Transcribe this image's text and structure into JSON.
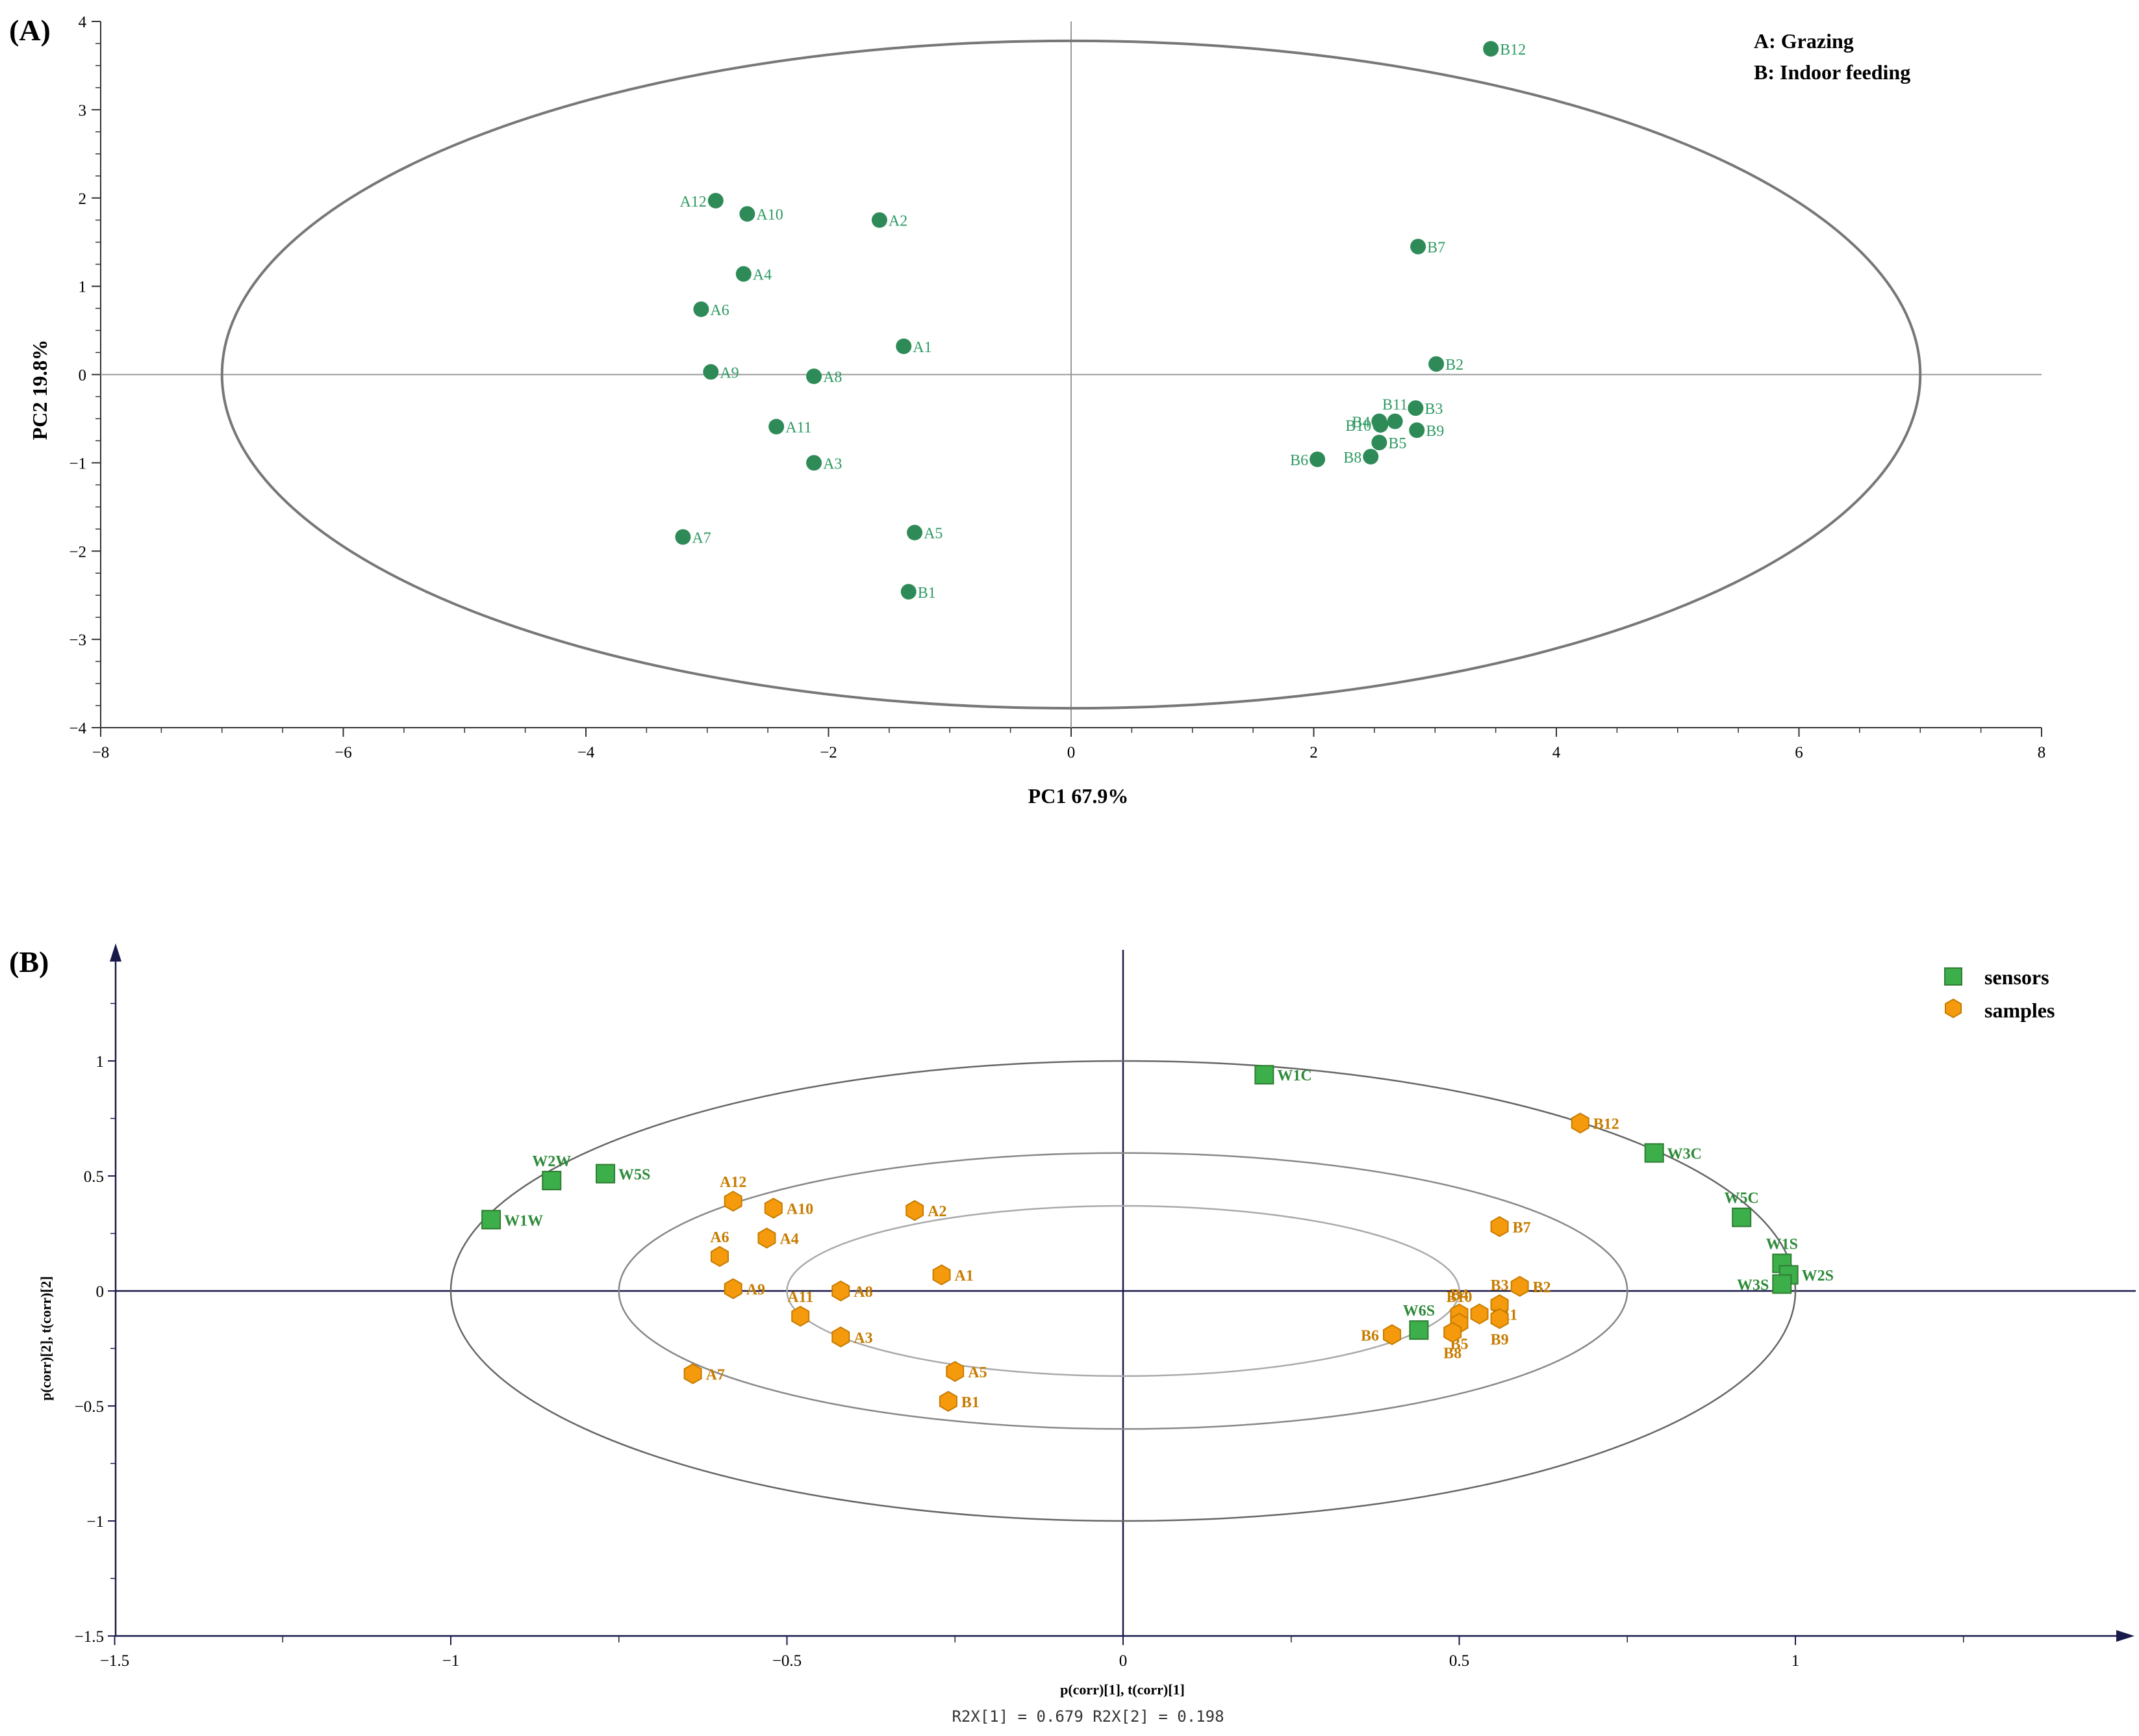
{
  "chart_data": [
    {
      "panel_label": "(A)",
      "type": "scatter",
      "title": "",
      "xlabel": "PC1 67.9%",
      "ylabel": "PC2 19.8%",
      "xlim": [
        -8,
        8
      ],
      "ylim": [
        -4,
        4
      ],
      "xticks": [
        "−8",
        "−6",
        "−4",
        "−2",
        "0",
        "2",
        "4",
        "6",
        "8"
      ],
      "yticks": [
        "−4",
        "−3",
        "−2",
        "−1",
        "0",
        "1",
        "2",
        "3",
        "4"
      ],
      "legend": [
        "A: Grazing",
        "B: Indoor feeding"
      ],
      "ellipse": {
        "cx": 0,
        "cy": 0,
        "rx": 7.0,
        "ry": 3.78
      },
      "color": "#2e8b57",
      "points": [
        {
          "label": "A12",
          "x": -2.93,
          "y": 1.97,
          "side": "left"
        },
        {
          "label": "A10",
          "x": -2.67,
          "y": 1.82,
          "side": "right"
        },
        {
          "label": "A2",
          "x": -1.58,
          "y": 1.75,
          "side": "right"
        },
        {
          "label": "A4",
          "x": -2.7,
          "y": 1.14,
          "side": "right"
        },
        {
          "label": "A6",
          "x": -3.05,
          "y": 0.74,
          "side": "right"
        },
        {
          "label": "A1",
          "x": -1.38,
          "y": 0.32,
          "side": "right"
        },
        {
          "label": "A9",
          "x": -2.97,
          "y": 0.03,
          "side": "right"
        },
        {
          "label": "A8",
          "x": -2.12,
          "y": -0.02,
          "side": "right"
        },
        {
          "label": "A11",
          "x": -2.43,
          "y": -0.59,
          "side": "right"
        },
        {
          "label": "A3",
          "x": -2.12,
          "y": -1.0,
          "side": "right"
        },
        {
          "label": "A5",
          "x": -1.29,
          "y": -1.79,
          "side": "right"
        },
        {
          "label": "A7",
          "x": -3.2,
          "y": -1.84,
          "side": "right"
        },
        {
          "label": "B1",
          "x": -1.34,
          "y": -2.46,
          "side": "right"
        },
        {
          "label": "B12",
          "x": 3.46,
          "y": 3.69,
          "side": "right"
        },
        {
          "label": "B7",
          "x": 2.86,
          "y": 1.45,
          "side": "right"
        },
        {
          "label": "B2",
          "x": 3.01,
          "y": 0.12,
          "side": "right"
        },
        {
          "label": "B11",
          "x": 2.67,
          "y": -0.53,
          "side": "above"
        },
        {
          "label": "B3",
          "x": 2.84,
          "y": -0.38,
          "side": "right"
        },
        {
          "label": "B4",
          "x": 2.54,
          "y": -0.53,
          "side": "left"
        },
        {
          "label": "B10",
          "x": 2.55,
          "y": -0.57,
          "side": "left"
        },
        {
          "label": "B9",
          "x": 2.85,
          "y": -0.63,
          "side": "right"
        },
        {
          "label": "B5",
          "x": 2.54,
          "y": -0.77,
          "side": "right"
        },
        {
          "label": "B8",
          "x": 2.47,
          "y": -0.93,
          "side": "left"
        },
        {
          "label": "B6",
          "x": 2.03,
          "y": -0.96,
          "side": "left"
        }
      ]
    },
    {
      "panel_label": "(B)",
      "type": "scatter",
      "title": "",
      "xlabel": "p(corr)[1], t(corr)[1]",
      "ylabel": "p(corr)[2], t(corr)[2]",
      "footnote": "R2X[1] = 0.679 R2X[2] = 0.198",
      "xlim": [
        -1.5,
        1.5
      ],
      "ylim": [
        -1.5,
        1.5
      ],
      "xticks": [
        "−1.5",
        "−1",
        "−0.5",
        "0",
        "0.5",
        "1"
      ],
      "yticks": [
        "−1.5",
        "−1",
        "−0.5",
        "0",
        "0.5",
        "1"
      ],
      "legend": [
        {
          "name": "sensors",
          "color": "#3cae4a",
          "marker": "square"
        },
        {
          "name": "samples",
          "color": "#f59a0c",
          "marker": "hexagon"
        }
      ],
      "ellipses": [
        {
          "rx": 1.0,
          "ry": 1.0
        },
        {
          "rx": 0.75,
          "ry": 0.6
        },
        {
          "rx": 0.5,
          "ry": 0.37
        }
      ],
      "sensors": [
        {
          "label": "W1C",
          "x": 0.21,
          "y": 0.94,
          "side": "right"
        },
        {
          "label": "W3C",
          "x": 0.79,
          "y": 0.6,
          "side": "right"
        },
        {
          "label": "W5C",
          "x": 0.92,
          "y": 0.32,
          "side": "above"
        },
        {
          "label": "W1S",
          "x": 0.98,
          "y": 0.12,
          "side": "above"
        },
        {
          "label": "W2S",
          "x": 0.99,
          "y": 0.07,
          "side": "right"
        },
        {
          "label": "W3S",
          "x": 0.98,
          "y": 0.03,
          "side": "left"
        },
        {
          "label": "W6S",
          "x": 0.44,
          "y": -0.17,
          "side": "above"
        },
        {
          "label": "W2W",
          "x": -0.85,
          "y": 0.48,
          "side": "above"
        },
        {
          "label": "W5S",
          "x": -0.77,
          "y": 0.51,
          "side": "right"
        },
        {
          "label": "W1W",
          "x": -0.94,
          "y": 0.31,
          "side": "right"
        }
      ],
      "samples": [
        {
          "label": "B12",
          "x": 0.68,
          "y": 0.73,
          "side": "right"
        },
        {
          "label": "B7",
          "x": 0.56,
          "y": 0.28,
          "side": "right"
        },
        {
          "label": "B2",
          "x": 0.59,
          "y": 0.02,
          "side": "right"
        },
        {
          "label": "B3",
          "x": 0.56,
          "y": -0.06,
          "side": "above"
        },
        {
          "label": "B10",
          "x": 0.5,
          "y": -0.11,
          "side": "above"
        },
        {
          "label": "B4",
          "x": 0.5,
          "y": -0.1,
          "side": "above"
        },
        {
          "label": "B11",
          "x": 0.53,
          "y": -0.1,
          "side": "right"
        },
        {
          "label": "B9",
          "x": 0.56,
          "y": -0.12,
          "side": "below"
        },
        {
          "label": "B5",
          "x": 0.5,
          "y": -0.14,
          "side": "below"
        },
        {
          "label": "B8",
          "x": 0.49,
          "y": -0.18,
          "side": "below"
        },
        {
          "label": "B6",
          "x": 0.4,
          "y": -0.19,
          "side": "left"
        },
        {
          "label": "A12",
          "x": -0.58,
          "y": 0.39,
          "side": "above"
        },
        {
          "label": "A10",
          "x": -0.52,
          "y": 0.36,
          "side": "right"
        },
        {
          "label": "A2",
          "x": -0.31,
          "y": 0.35,
          "side": "right"
        },
        {
          "label": "A4",
          "x": -0.53,
          "y": 0.23,
          "side": "right"
        },
        {
          "label": "A6",
          "x": -0.6,
          "y": 0.15,
          "side": "above"
        },
        {
          "label": "A1",
          "x": -0.27,
          "y": 0.07,
          "side": "right"
        },
        {
          "label": "A9",
          "x": -0.58,
          "y": 0.01,
          "side": "right"
        },
        {
          "label": "A8",
          "x": -0.42,
          "y": 0.0,
          "side": "right"
        },
        {
          "label": "A11",
          "x": -0.48,
          "y": -0.11,
          "side": "above"
        },
        {
          "label": "A3",
          "x": -0.42,
          "y": -0.2,
          "side": "right"
        },
        {
          "label": "A7",
          "x": -0.64,
          "y": -0.36,
          "side": "right"
        },
        {
          "label": "A5",
          "x": -0.25,
          "y": -0.35,
          "side": "right"
        },
        {
          "label": "B1",
          "x": -0.26,
          "y": -0.48,
          "side": "right"
        }
      ]
    }
  ]
}
